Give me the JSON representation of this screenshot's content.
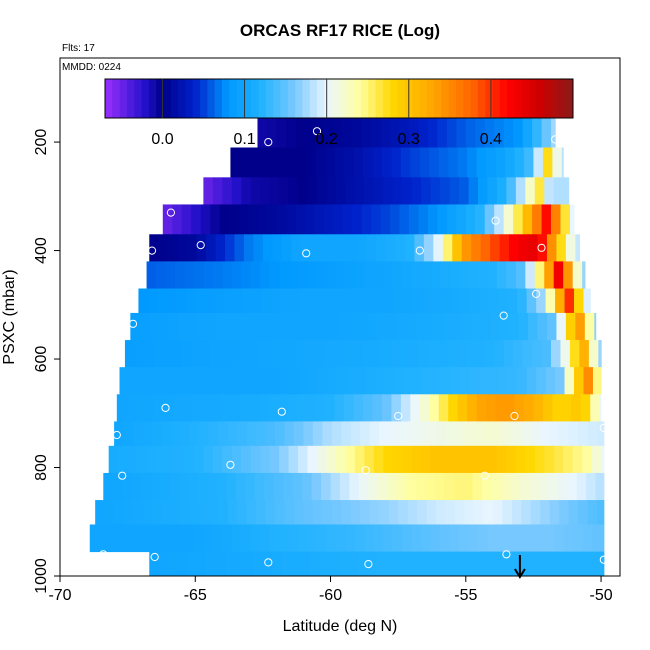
{
  "chart_data": {
    "type": "heatmap",
    "title": "ORCAS RF17 RICE (Log)",
    "flights_label": "Flts: 17",
    "date_label": "MMDD: 0224",
    "xlabel": "Latitude (deg N)",
    "ylabel": "PSXC (mbar)",
    "xlim": [
      -70,
      -49.3
    ],
    "ylim": [
      1000,
      45
    ],
    "y_reversed": true,
    "x_ticks": [
      -70,
      -65,
      -60,
      -55,
      -50
    ],
    "y_ticks": [
      200,
      400,
      600,
      800,
      1000
    ],
    "colorbar": {
      "range": [
        -0.07,
        0.5
      ],
      "ticks": [
        0.0,
        0.1,
        0.2,
        0.3,
        0.4
      ],
      "tick_labels": [
        "0.0",
        "0.1",
        "0.2",
        "0.3",
        "0.4"
      ],
      "stops": [
        {
          "v": -0.07,
          "c": "#9B30FF"
        },
        {
          "v": -0.02,
          "c": "#2010C8"
        },
        {
          "v": 0.0,
          "c": "#00008B"
        },
        {
          "v": 0.04,
          "c": "#0022CC"
        },
        {
          "v": 0.08,
          "c": "#0099FF"
        },
        {
          "v": 0.12,
          "c": "#20B2FF"
        },
        {
          "v": 0.16,
          "c": "#77C8FF"
        },
        {
          "v": 0.2,
          "c": "#EAF6FF"
        },
        {
          "v": 0.24,
          "c": "#FFFFA0"
        },
        {
          "v": 0.28,
          "c": "#FFD700"
        },
        {
          "v": 0.33,
          "c": "#FFA500"
        },
        {
          "v": 0.38,
          "c": "#FF6000"
        },
        {
          "v": 0.42,
          "c": "#FF0000"
        },
        {
          "v": 0.46,
          "c": "#CC0000"
        },
        {
          "v": 0.5,
          "c": "#8B1A1A"
        }
      ]
    },
    "rows": [
      {
        "p0": 155,
        "p1": 210,
        "x0": -62.7,
        "x1": -51.7,
        "ctrl": [
          [
            -62.7,
            -0.01
          ],
          [
            -61,
            0.0
          ],
          [
            -59,
            0.01
          ],
          [
            -57,
            0.03
          ],
          [
            -55,
            0.06
          ],
          [
            -53,
            0.08
          ],
          [
            -52.2,
            0.14
          ],
          [
            -51.7,
            0.18
          ]
        ]
      },
      {
        "p0": 210,
        "p1": 265,
        "x0": -63.7,
        "x1": -51.4,
        "ctrl": [
          [
            -63.7,
            0.0
          ],
          [
            -61,
            0.0
          ],
          [
            -59,
            0.02
          ],
          [
            -57,
            0.05
          ],
          [
            -55,
            0.07
          ],
          [
            -53.5,
            0.1
          ],
          [
            -52.5,
            0.14
          ],
          [
            -52,
            0.28
          ],
          [
            -51.7,
            0.22
          ],
          [
            -51.4,
            0.18
          ]
        ]
      },
      {
        "p0": 265,
        "p1": 315,
        "x0": -64.7,
        "x1": -51.2,
        "ctrl": [
          [
            -64.7,
            -0.05
          ],
          [
            -63,
            -0.01
          ],
          [
            -61,
            0.0
          ],
          [
            -59,
            0.02
          ],
          [
            -57,
            0.04
          ],
          [
            -55,
            0.06
          ],
          [
            -53.5,
            0.12
          ],
          [
            -52.8,
            0.2
          ],
          [
            -52.3,
            0.27
          ],
          [
            -51.9,
            0.18
          ],
          [
            -51.2,
            0.18
          ]
        ]
      },
      {
        "p0": 315,
        "p1": 370,
        "x0": -66.2,
        "x1": -51.0,
        "ctrl": [
          [
            -66.2,
            -0.05
          ],
          [
            -64,
            0.0
          ],
          [
            -62,
            0.01
          ],
          [
            -60,
            0.03
          ],
          [
            -58,
            0.05
          ],
          [
            -56,
            0.08
          ],
          [
            -54.5,
            0.12
          ],
          [
            -53.6,
            0.2
          ],
          [
            -53.0,
            0.27
          ],
          [
            -52.5,
            0.34
          ],
          [
            -52.0,
            0.42
          ],
          [
            -51.6,
            0.34
          ],
          [
            -51.0,
            0.18
          ]
        ]
      },
      {
        "p0": 370,
        "p1": 420,
        "x0": -66.7,
        "x1": -50.8,
        "ctrl": [
          [
            -66.7,
            0.0
          ],
          [
            -65,
            0.01
          ],
          [
            -63,
            0.07
          ],
          [
            -61,
            0.1
          ],
          [
            -59,
            0.1
          ],
          [
            -57,
            0.12
          ],
          [
            -56,
            0.2
          ],
          [
            -55.5,
            0.28
          ],
          [
            -55,
            0.34
          ],
          [
            -54,
            0.39
          ],
          [
            -53,
            0.43
          ],
          [
            -52.3,
            0.44
          ],
          [
            -51.7,
            0.32
          ],
          [
            -51.2,
            0.22
          ],
          [
            -50.8,
            0.18
          ]
        ]
      },
      {
        "p0": 420,
        "p1": 470,
        "x0": -66.8,
        "x1": -50.6,
        "ctrl": [
          [
            -66.8,
            0.06
          ],
          [
            -64,
            0.07
          ],
          [
            -62,
            0.08
          ],
          [
            -60,
            0.09
          ],
          [
            -58,
            0.1
          ],
          [
            -56,
            0.11
          ],
          [
            -54,
            0.12
          ],
          [
            -53,
            0.14
          ],
          [
            -52.4,
            0.22
          ],
          [
            -51.9,
            0.34
          ],
          [
            -51.5,
            0.45
          ],
          [
            -51.0,
            0.25
          ],
          [
            -50.6,
            0.16
          ]
        ]
      },
      {
        "p0": 470,
        "p1": 515,
        "x0": -67.1,
        "x1": -50.4,
        "ctrl": [
          [
            -67.1,
            0.08
          ],
          [
            -64,
            0.09
          ],
          [
            -61,
            0.1
          ],
          [
            -58,
            0.1
          ],
          [
            -55,
            0.11
          ],
          [
            -53,
            0.12
          ],
          [
            -52.1,
            0.18
          ],
          [
            -51.6,
            0.3
          ],
          [
            -51.2,
            0.41
          ],
          [
            -50.9,
            0.3
          ],
          [
            -50.4,
            0.16
          ]
        ]
      },
      {
        "p0": 515,
        "p1": 565,
        "x0": -67.4,
        "x1": -50.2,
        "ctrl": [
          [
            -67.4,
            0.09
          ],
          [
            -64,
            0.1
          ],
          [
            -60,
            0.1
          ],
          [
            -56,
            0.11
          ],
          [
            -53,
            0.12
          ],
          [
            -51.8,
            0.15
          ],
          [
            -51.3,
            0.23
          ],
          [
            -50.9,
            0.36
          ],
          [
            -50.6,
            0.3
          ],
          [
            -50.2,
            0.16
          ]
        ]
      },
      {
        "p0": 565,
        "p1": 615,
        "x0": -67.6,
        "x1": -50.0,
        "ctrl": [
          [
            -67.6,
            0.09
          ],
          [
            -63,
            0.1
          ],
          [
            -58,
            0.11
          ],
          [
            -54,
            0.12
          ],
          [
            -52,
            0.14
          ],
          [
            -51.2,
            0.22
          ],
          [
            -50.7,
            0.34
          ],
          [
            -50.4,
            0.25
          ],
          [
            -50.0,
            0.16
          ]
        ]
      },
      {
        "p0": 615,
        "p1": 665,
        "x0": -67.8,
        "x1": -50.0,
        "ctrl": [
          [
            -67.8,
            0.1
          ],
          [
            -62,
            0.1
          ],
          [
            -57,
            0.12
          ],
          [
            -53,
            0.13
          ],
          [
            -51.5,
            0.16
          ],
          [
            -50.8,
            0.3
          ],
          [
            -50.4,
            0.36
          ],
          [
            -50.0,
            0.18
          ]
        ]
      },
      {
        "p0": 665,
        "p1": 715,
        "x0": -67.9,
        "x1": -50.0,
        "ctrl": [
          [
            -67.9,
            0.1
          ],
          [
            -63,
            0.11
          ],
          [
            -60,
            0.12
          ],
          [
            -58,
            0.15
          ],
          [
            -56.5,
            0.22
          ],
          [
            -55.5,
            0.28
          ],
          [
            -54.5,
            0.33
          ],
          [
            -53.5,
            0.34
          ],
          [
            -52.5,
            0.32
          ],
          [
            -51.5,
            0.28
          ],
          [
            -50.7,
            0.3
          ],
          [
            -50.0,
            0.2
          ]
        ]
      },
      {
        "p0": 715,
        "p1": 760,
        "x0": -68.0,
        "x1": -49.9,
        "ctrl": [
          [
            -68.0,
            0.1
          ],
          [
            -65,
            0.12
          ],
          [
            -62,
            0.14
          ],
          [
            -60,
            0.18
          ],
          [
            -58,
            0.2
          ],
          [
            -56,
            0.21
          ],
          [
            -54,
            0.22
          ],
          [
            -52,
            0.2
          ],
          [
            -49.9,
            0.19
          ]
        ]
      },
      {
        "p0": 760,
        "p1": 810,
        "x0": -68.2,
        "x1": -49.9,
        "ctrl": [
          [
            -68.2,
            0.11
          ],
          [
            -65,
            0.12
          ],
          [
            -62,
            0.16
          ],
          [
            -60,
            0.22
          ],
          [
            -58,
            0.28
          ],
          [
            -56,
            0.3
          ],
          [
            -54,
            0.3
          ],
          [
            -52,
            0.27
          ],
          [
            -50.5,
            0.24
          ],
          [
            -49.9,
            0.2
          ]
        ]
      },
      {
        "p0": 810,
        "p1": 860,
        "x0": -68.4,
        "x1": -49.9,
        "ctrl": [
          [
            -68.4,
            0.1
          ],
          [
            -64,
            0.12
          ],
          [
            -61,
            0.15
          ],
          [
            -59,
            0.2
          ],
          [
            -57,
            0.24
          ],
          [
            -55,
            0.25
          ],
          [
            -53,
            0.22
          ],
          [
            -51,
            0.2
          ],
          [
            -49.9,
            0.18
          ]
        ]
      },
      {
        "p0": 860,
        "p1": 905,
        "x0": -68.7,
        "x1": -49.9,
        "ctrl": [
          [
            -68.7,
            0.1
          ],
          [
            -64,
            0.12
          ],
          [
            -61,
            0.15
          ],
          [
            -58,
            0.17
          ],
          [
            -56,
            0.19
          ],
          [
            -54,
            0.2
          ],
          [
            -52,
            0.17
          ],
          [
            -49.9,
            0.14
          ]
        ]
      },
      {
        "p0": 905,
        "p1": 955,
        "x0": -68.9,
        "x1": -49.9,
        "ctrl": [
          [
            -68.9,
            0.1
          ],
          [
            -65,
            0.1
          ],
          [
            -62,
            0.12
          ],
          [
            -59,
            0.13
          ],
          [
            -56,
            0.15
          ],
          [
            -54,
            0.16
          ],
          [
            -52,
            0.16
          ],
          [
            -49.9,
            0.15
          ]
        ]
      },
      {
        "p0": 955,
        "p1": 1000,
        "x0": -66.7,
        "x1": -49.9,
        "ctrl": [
          [
            -66.7,
            0.1
          ],
          [
            -62,
            0.11
          ],
          [
            -58,
            0.12
          ],
          [
            -55,
            0.12
          ],
          [
            -52,
            0.12
          ],
          [
            -49.9,
            0.12
          ]
        ]
      }
    ],
    "points": [
      [
        -60.5,
        180
      ],
      [
        -62.3,
        200
      ],
      [
        -51.7,
        195
      ],
      [
        -65.9,
        330
      ],
      [
        -53.9,
        345
      ],
      [
        -64.8,
        390
      ],
      [
        -66.6,
        400
      ],
      [
        -60.9,
        405
      ],
      [
        -56.7,
        400
      ],
      [
        -52.2,
        395
      ],
      [
        -52.4,
        480
      ],
      [
        -53.6,
        520
      ],
      [
        -67.3,
        535
      ],
      [
        -66.1,
        690
      ],
      [
        -61.8,
        697
      ],
      [
        -57.5,
        705
      ],
      [
        -53.2,
        705
      ],
      [
        -67.9,
        740
      ],
      [
        -49.9,
        727
      ],
      [
        -63.7,
        795
      ],
      [
        -58.7,
        805
      ],
      [
        -54.3,
        815
      ],
      [
        -67.7,
        815
      ],
      [
        -68.4,
        960
      ],
      [
        -66.5,
        965
      ],
      [
        -62.3,
        975
      ],
      [
        -58.6,
        978
      ],
      [
        -53.5,
        960
      ],
      [
        -49.9,
        970
      ]
    ],
    "marker_latitude": -53.0
  }
}
